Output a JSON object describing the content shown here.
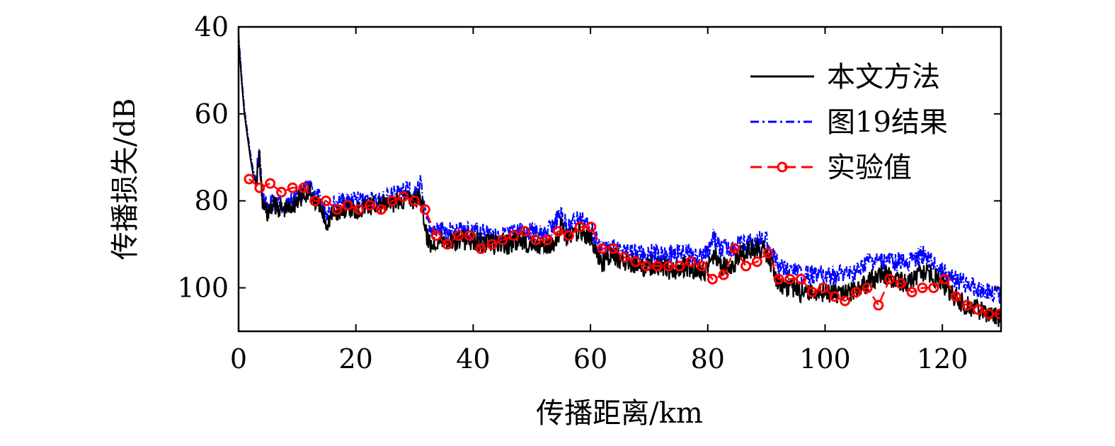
{
  "chart_data": {
    "type": "line",
    "title": "",
    "xlabel": "传播距离/km",
    "ylabel": "传播损失/dB",
    "xlim": [
      0,
      130
    ],
    "ylim": [
      40,
      110
    ],
    "y_inverted": true,
    "xticks": [
      0,
      20,
      40,
      60,
      80,
      100,
      120
    ],
    "yticks": [
      40,
      60,
      80,
      100
    ],
    "legend_position": "top-right",
    "series": [
      {
        "name": "本文方法",
        "color": "#000000",
        "style": "solid",
        "x": [
          0,
          0.5,
          1,
          1.5,
          2,
          2.5,
          3,
          3.3,
          3.6,
          4,
          5,
          6,
          8,
          10,
          12,
          14,
          15,
          16,
          18,
          20,
          22,
          24,
          26,
          28,
          29,
          30,
          31,
          32,
          33,
          34,
          36,
          38,
          40,
          42,
          44,
          46,
          48,
          50,
          52,
          54,
          55,
          56,
          58,
          60,
          61,
          62,
          64,
          66,
          68,
          70,
          72,
          74,
          76,
          78,
          80,
          81,
          82,
          84,
          86,
          88,
          89,
          90,
          91,
          92,
          94,
          96,
          98,
          100,
          102,
          104,
          106,
          107,
          108,
          110,
          112,
          114,
          116,
          117,
          118,
          120,
          122,
          124,
          126,
          128,
          130
        ],
        "y": [
          43,
          52,
          60,
          65,
          70,
          74,
          76,
          72,
          70,
          80,
          83,
          81,
          82,
          80,
          78,
          82,
          85,
          83,
          82,
          82,
          81,
          81,
          81,
          80,
          79,
          80,
          78,
          88,
          90,
          89,
          89,
          89,
          89,
          90,
          90,
          90,
          89,
          90,
          91,
          89,
          86,
          89,
          87,
          88,
          92,
          94,
          93,
          94,
          95,
          95,
          95,
          96,
          95,
          96,
          96,
          92,
          95,
          95,
          92,
          91,
          91,
          92,
          95,
          99,
          100,
          101,
          101,
          101,
          101,
          101,
          100,
          99,
          98,
          97,
          98,
          99,
          97,
          96,
          97,
          99,
          102,
          104,
          105,
          106,
          107
        ]
      },
      {
        "name": "图19结果",
        "color": "#0000ff",
        "style": "dashdot",
        "x": [
          0,
          0.5,
          1,
          1.5,
          2,
          2.5,
          3,
          3.3,
          3.6,
          4,
          5,
          6,
          8,
          10,
          12,
          14,
          15,
          16,
          18,
          20,
          22,
          24,
          26,
          28,
          29,
          30,
          31,
          32,
          33,
          34,
          36,
          38,
          40,
          42,
          44,
          46,
          48,
          50,
          52,
          54,
          55,
          56,
          58,
          60,
          61,
          62,
          64,
          66,
          68,
          70,
          72,
          74,
          76,
          78,
          80,
          81,
          82,
          84,
          86,
          88,
          89,
          90,
          91,
          92,
          94,
          96,
          98,
          100,
          102,
          104,
          106,
          107,
          108,
          110,
          112,
          114,
          116,
          117,
          118,
          120,
          122,
          124,
          126,
          128,
          130
        ],
        "y": [
          42,
          51,
          59,
          64,
          69,
          73,
          75,
          71,
          69,
          79,
          82,
          80,
          81,
          79,
          77,
          80,
          83,
          81,
          80,
          80,
          80,
          80,
          79,
          78,
          77,
          79,
          76,
          85,
          87,
          87,
          87,
          87,
          87,
          87,
          88,
          88,
          87,
          87,
          88,
          85,
          83,
          86,
          84,
          86,
          89,
          91,
          91,
          92,
          92,
          92,
          92,
          92,
          92,
          93,
          92,
          88,
          91,
          91,
          90,
          89,
          89,
          89,
          92,
          95,
          96,
          97,
          97,
          97,
          97,
          97,
          96,
          94,
          94,
          94,
          94,
          94,
          93,
          92,
          94,
          96,
          98,
          99,
          100,
          101,
          102
        ]
      },
      {
        "name": "实验值",
        "color": "#ff0000",
        "style": "dashed-circle",
        "x": [
          1.8,
          3.6,
          5.4,
          7.3,
          9.2,
          11.1,
          13.0,
          14.9,
          16.8,
          18.6,
          20.5,
          22.4,
          24.3,
          26.2,
          28.1,
          30.0,
          31.8,
          33.7,
          35.6,
          37.5,
          39.4,
          41.3,
          43.2,
          45.0,
          46.9,
          48.8,
          50.7,
          52.6,
          54.5,
          56.3,
          58.2,
          60.1,
          62.0,
          63.9,
          65.8,
          67.7,
          69.5,
          71.4,
          73.3,
          75.2,
          77.1,
          79.0,
          80.8,
          82.7,
          84.6,
          86.5,
          88.4,
          90.3,
          92.1,
          94.0,
          95.9,
          97.8,
          99.7,
          101.6,
          103.4,
          105.3,
          107.2,
          109.1,
          111.0,
          112.9,
          114.8,
          116.6,
          118.5,
          120.4,
          122.3,
          124.2,
          126.1,
          127.9,
          129.8
        ],
        "y": [
          75,
          77,
          76,
          78,
          77,
          77,
          80,
          80,
          82,
          81,
          82,
          81,
          82,
          80,
          79,
          80,
          82,
          88,
          90,
          88,
          88,
          91,
          90,
          89,
          88,
          87,
          89,
          89,
          87,
          88,
          86,
          86,
          91,
          91,
          93,
          94,
          95,
          95,
          95,
          95,
          94,
          95,
          98,
          97,
          91,
          95,
          94,
          92,
          98,
          98,
          98,
          101,
          100,
          102,
          103,
          101,
          100,
          104,
          98,
          99,
          101,
          100,
          100,
          98,
          102,
          104,
          105,
          106,
          106
        ]
      }
    ]
  }
}
